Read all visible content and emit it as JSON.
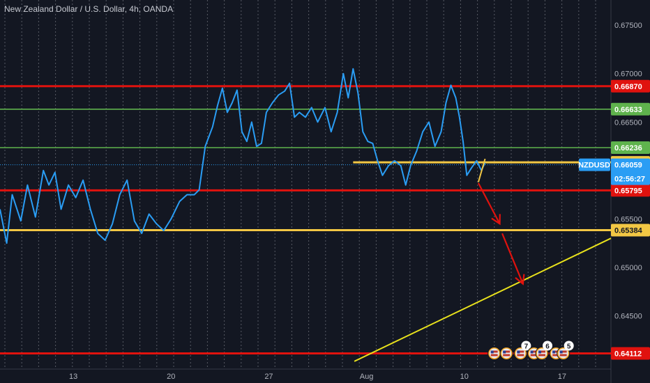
{
  "title": "New Zealand Dollar / U.S. Dollar, 4h, OANDA",
  "colors": {
    "background": "#131722",
    "price_line": "#2a9df4",
    "red_level": "#e0120e",
    "green_level": "#5fb34d",
    "yellow_level": "#f2c744",
    "trendline": "#e9e21c",
    "arrow": "#e0120e",
    "axis_text": "#b2b5be",
    "grid": "#2a2e39"
  },
  "chart_data": {
    "type": "line",
    "symbol": "NZDUSD",
    "current_price": "0.66059",
    "countdown": "02:56:27",
    "ylim": [
      0.6395,
      0.6776
    ],
    "y_ticks": [
      "0.67500",
      "0.67000",
      "0.66500",
      "0.65500",
      "0.65000",
      "0.64500"
    ],
    "x_ticks": [
      {
        "label": "13",
        "x": 0.12
      },
      {
        "label": "20",
        "x": 0.28
      },
      {
        "label": "27",
        "x": 0.44
      },
      {
        "label": "Aug",
        "x": 0.6
      },
      {
        "label": "10",
        "x": 0.76
      },
      {
        "label": "17",
        "x": 0.92
      }
    ],
    "xlim": [
      0,
      1
    ],
    "levels": [
      {
        "label": "0.66870",
        "value": 0.6687,
        "kind": "red"
      },
      {
        "label": "0.66633",
        "value": 0.66633,
        "kind": "green"
      },
      {
        "label": "0.66236",
        "value": 0.66236,
        "kind": "green"
      },
      {
        "label": "0.66084",
        "value": 0.66084,
        "kind": "yellow",
        "x_start": 0.578
      },
      {
        "label": "0.65795",
        "value": 0.65795,
        "kind": "red"
      },
      {
        "label": "0.65384",
        "value": 0.65384,
        "kind": "yellow"
      },
      {
        "label": "0.64112",
        "value": 0.64112,
        "kind": "red"
      }
    ],
    "price_series": [
      [
        0.0,
        0.656
      ],
      [
        0.011,
        0.6525
      ],
      [
        0.02,
        0.6575
      ],
      [
        0.034,
        0.6548
      ],
      [
        0.045,
        0.6585
      ],
      [
        0.058,
        0.6552
      ],
      [
        0.071,
        0.66
      ],
      [
        0.08,
        0.6585
      ],
      [
        0.09,
        0.6598
      ],
      [
        0.1,
        0.656
      ],
      [
        0.112,
        0.6585
      ],
      [
        0.124,
        0.6572
      ],
      [
        0.136,
        0.659
      ],
      [
        0.148,
        0.656
      ],
      [
        0.16,
        0.6535
      ],
      [
        0.172,
        0.6528
      ],
      [
        0.184,
        0.6545
      ],
      [
        0.196,
        0.6575
      ],
      [
        0.208,
        0.659
      ],
      [
        0.22,
        0.6548
      ],
      [
        0.232,
        0.6535
      ],
      [
        0.244,
        0.6555
      ],
      [
        0.256,
        0.6545
      ],
      [
        0.268,
        0.6538
      ],
      [
        0.28,
        0.655
      ],
      [
        0.294,
        0.6568
      ],
      [
        0.306,
        0.6575
      ],
      [
        0.318,
        0.6575
      ],
      [
        0.326,
        0.658
      ],
      [
        0.336,
        0.6625
      ],
      [
        0.348,
        0.6645
      ],
      [
        0.356,
        0.6667
      ],
      [
        0.364,
        0.6685
      ],
      [
        0.372,
        0.666
      ],
      [
        0.38,
        0.667
      ],
      [
        0.388,
        0.6683
      ],
      [
        0.396,
        0.664
      ],
      [
        0.404,
        0.663
      ],
      [
        0.412,
        0.665
      ],
      [
        0.42,
        0.6625
      ],
      [
        0.428,
        0.6628
      ],
      [
        0.436,
        0.666
      ],
      [
        0.446,
        0.667
      ],
      [
        0.456,
        0.6678
      ],
      [
        0.466,
        0.6682
      ],
      [
        0.474,
        0.669
      ],
      [
        0.482,
        0.6655
      ],
      [
        0.49,
        0.666
      ],
      [
        0.5,
        0.6655
      ],
      [
        0.51,
        0.6665
      ],
      [
        0.52,
        0.665
      ],
      [
        0.532,
        0.6665
      ],
      [
        0.542,
        0.664
      ],
      [
        0.552,
        0.666
      ],
      [
        0.562,
        0.67
      ],
      [
        0.57,
        0.6675
      ],
      [
        0.578,
        0.6705
      ],
      [
        0.586,
        0.668
      ],
      [
        0.594,
        0.664
      ],
      [
        0.602,
        0.663
      ],
      [
        0.61,
        0.6628
      ],
      [
        0.618,
        0.661
      ],
      [
        0.626,
        0.6595
      ],
      [
        0.636,
        0.6605
      ],
      [
        0.646,
        0.661
      ],
      [
        0.656,
        0.6605
      ],
      [
        0.664,
        0.6585
      ],
      [
        0.672,
        0.6605
      ],
      [
        0.682,
        0.662
      ],
      [
        0.692,
        0.664
      ],
      [
        0.702,
        0.665
      ],
      [
        0.712,
        0.6625
      ],
      [
        0.722,
        0.664
      ],
      [
        0.73,
        0.667
      ],
      [
        0.738,
        0.6688
      ],
      [
        0.746,
        0.6675
      ],
      [
        0.752,
        0.6655
      ],
      [
        0.758,
        0.663
      ],
      [
        0.764,
        0.6595
      ],
      [
        0.772,
        0.6603
      ],
      [
        0.78,
        0.661
      ],
      [
        0.788,
        0.66
      ],
      [
        0.794,
        0.6608
      ]
    ],
    "trendline": [
      [
        0.58,
        0.6403
      ],
      [
        1.0,
        0.653
      ]
    ],
    "drawn_arrows": [
      [
        [
          0.783,
          0.6587
        ],
        [
          0.818,
          0.6545
        ]
      ],
      [
        [
          0.822,
          0.6535
        ],
        [
          0.856,
          0.6483
        ]
      ]
    ],
    "marker_line": [
      [
        0.783,
        0.6588
      ],
      [
        0.794,
        0.6612
      ]
    ],
    "events": [
      {
        "kind": "flag",
        "x": 0.809
      },
      {
        "kind": "flag",
        "x": 0.829
      },
      {
        "kind": "flag-stack",
        "x": 0.852,
        "count": "7"
      },
      {
        "kind": "flag",
        "x": 0.874
      },
      {
        "kind": "flag-stack",
        "x": 0.887,
        "count": "6"
      },
      {
        "kind": "flag",
        "x": 0.91
      },
      {
        "kind": "flag-stack",
        "x": 0.922,
        "count": "5"
      }
    ]
  }
}
